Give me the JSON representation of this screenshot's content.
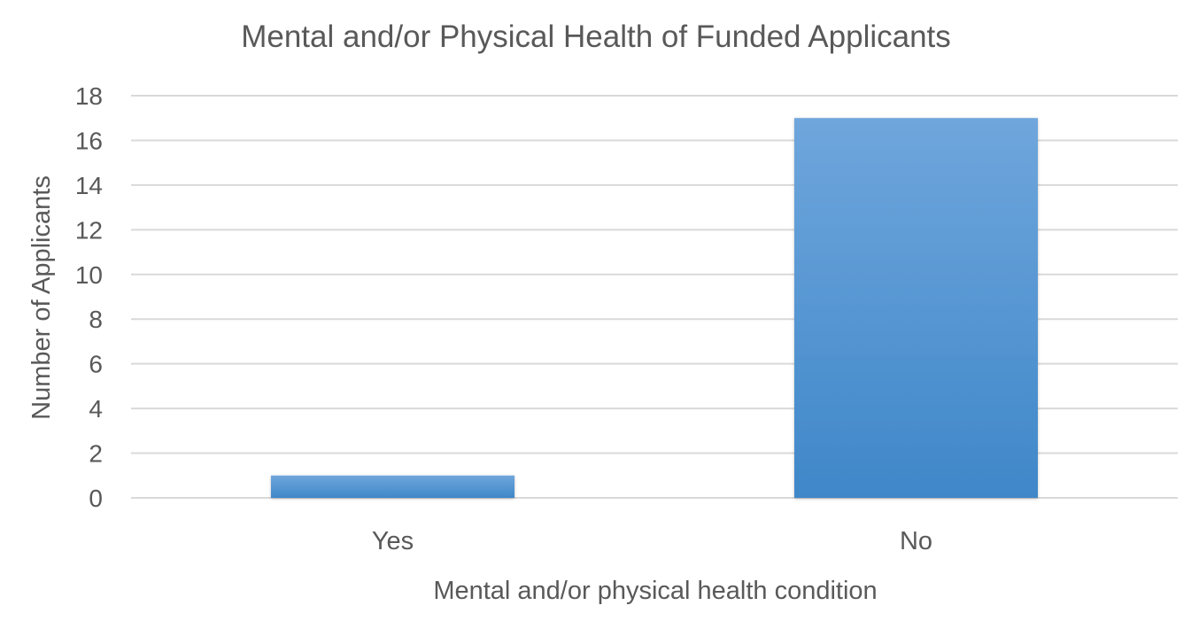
{
  "chart_data": {
    "type": "bar",
    "title": "Mental and/or Physical Health of Funded Applicants",
    "xlabel": "Mental and/or physical health condition",
    "ylabel": "Number of Applicants",
    "categories": [
      "Yes",
      "No"
    ],
    "values": [
      1,
      17
    ],
    "ylim": [
      0,
      18
    ],
    "yticks": [
      0,
      2,
      4,
      6,
      8,
      10,
      12,
      14,
      16,
      18
    ],
    "grid": true,
    "legend": "none",
    "colors": {
      "bar_top": "#6fa6dc",
      "bar_bottom": "#3f87c9",
      "grid": "#d9d9d9",
      "text": "#595959"
    }
  }
}
